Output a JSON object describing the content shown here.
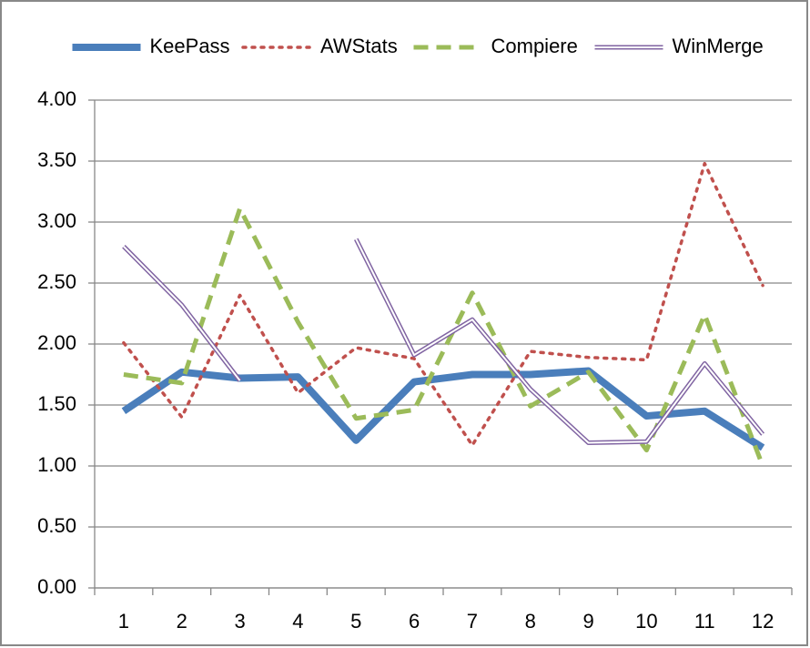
{
  "chart_data": {
    "type": "line",
    "categories": [
      "1",
      "2",
      "3",
      "4",
      "5",
      "6",
      "7",
      "8",
      "9",
      "10",
      "11",
      "12"
    ],
    "series": [
      {
        "name": "KeePass",
        "color": "#4a7ebb",
        "style": "solid",
        "values": [
          1.45,
          1.77,
          1.72,
          1.73,
          1.21,
          1.69,
          1.75,
          1.75,
          1.78,
          1.41,
          1.45,
          1.15
        ]
      },
      {
        "name": "AWStats",
        "color": "#c0504d",
        "style": "dotted",
        "values": [
          2.01,
          1.4,
          2.4,
          1.6,
          1.97,
          1.88,
          1.17,
          1.94,
          1.89,
          1.87,
          3.48,
          2.48
        ]
      },
      {
        "name": "Compiere",
        "color": "#9bbb59",
        "style": "dashed",
        "values": [
          1.75,
          1.68,
          3.11,
          2.18,
          1.39,
          1.46,
          2.42,
          1.49,
          1.77,
          1.13,
          2.24,
          1.0
        ]
      },
      {
        "name": "WinMerge",
        "color": "#8064a2",
        "style": "double",
        "values": [
          2.8,
          2.32,
          1.7,
          null,
          2.86,
          1.91,
          2.2,
          1.63,
          1.19,
          1.2,
          1.84,
          1.26
        ]
      }
    ],
    "ylim": [
      0,
      4
    ],
    "yticks": [
      {
        "value": 0,
        "label": "0.00"
      },
      {
        "value": 0.5,
        "label": "0.50"
      },
      {
        "value": 1,
        "label": "1.00"
      },
      {
        "value": 1.5,
        "label": "1.50"
      },
      {
        "value": 2,
        "label": "2.00"
      },
      {
        "value": 2.5,
        "label": "2.50"
      },
      {
        "value": 3,
        "label": "3.00"
      },
      {
        "value": 3.5,
        "label": "3.50"
      },
      {
        "value": 4,
        "label": "4.00"
      }
    ],
    "grid": true,
    "legend": "top"
  }
}
